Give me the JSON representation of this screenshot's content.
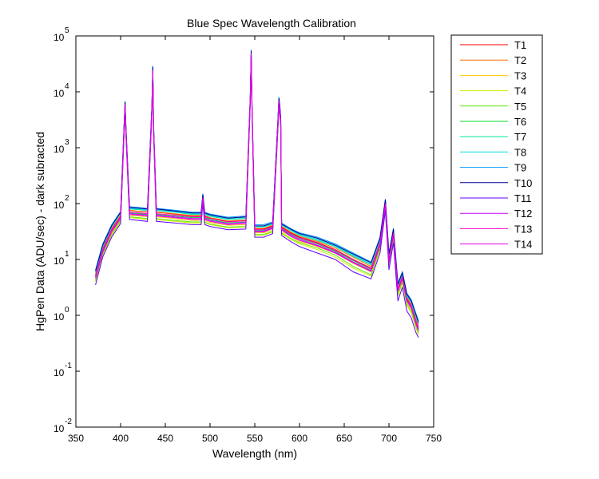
{
  "chart_data": {
    "type": "line",
    "title": "Blue Spec Wavelength Calibration",
    "xlabel": "Wavelength (nm)",
    "ylabel": "HgPen Data (ADU/sec) - dark subracted",
    "xlim": [
      350,
      750
    ],
    "ylim": [
      0.01,
      100000
    ],
    "yscale": "log",
    "grid": false,
    "legend_position": "outside-right",
    "x_ticks": [
      "350",
      "400",
      "450",
      "500",
      "550",
      "600",
      "650",
      "700",
      "750"
    ],
    "y_ticks": [
      {
        "base": "10",
        "exp": "-2"
      },
      {
        "base": "10",
        "exp": "-1"
      },
      {
        "base": "10",
        "exp": "0"
      },
      {
        "base": "10",
        "exp": "1"
      },
      {
        "base": "10",
        "exp": "2"
      },
      {
        "base": "10",
        "exp": "3"
      },
      {
        "base": "10",
        "exp": "4"
      },
      {
        "base": "10",
        "exp": "5"
      }
    ],
    "x": [
      372,
      380,
      390,
      400,
      404,
      405,
      406,
      410,
      420,
      430,
      435,
      436,
      437,
      440,
      460,
      480,
      490,
      492,
      494,
      500,
      520,
      540,
      545,
      546,
      547,
      550,
      560,
      570,
      576,
      577,
      578,
      579,
      580,
      590,
      600,
      620,
      640,
      660,
      680,
      690,
      696,
      700,
      705,
      710,
      715,
      720,
      725,
      730,
      733
    ],
    "series": [
      {
        "name": "T1",
        "color": "#ff0000",
        "values": [
          5,
          15,
          35,
          60,
          2500,
          6000,
          2000,
          75,
          72,
          70,
          5000,
          25000,
          2000,
          70,
          65,
          60,
          60,
          130,
          60,
          55,
          48,
          50,
          8000,
          50000,
          5000,
          35,
          35,
          40,
          3000,
          7000,
          5000,
          3000,
          38,
          30,
          25,
          20,
          15,
          10,
          7,
          20,
          100,
          10,
          30,
          3,
          5,
          2,
          1.5,
          0.8,
          0.6
        ]
      },
      {
        "name": "T2",
        "color": "#ff6a00",
        "values": [
          5.5,
          16,
          36,
          62,
          2600,
          6200,
          2100,
          76,
          73,
          71,
          5200,
          26000,
          2100,
          71,
          66,
          61,
          61,
          132,
          61,
          56,
          49,
          51,
          8200,
          51000,
          5100,
          36,
          36,
          41,
          3100,
          7200,
          5100,
          3100,
          39,
          31,
          26,
          21,
          16,
          11,
          7.5,
          21,
          105,
          11,
          31,
          3.2,
          5.2,
          2.1,
          1.6,
          0.9,
          0.65
        ]
      },
      {
        "name": "T3",
        "color": "#ffc800",
        "values": [
          4.5,
          13,
          30,
          52,
          2200,
          5500,
          1800,
          62,
          60,
          58,
          4500,
          22000,
          1800,
          58,
          54,
          50,
          50,
          115,
          50,
          46,
          41,
          42,
          7000,
          45000,
          4400,
          30,
          30,
          34,
          2600,
          6200,
          4300,
          2600,
          32,
          26,
          21,
          17,
          13,
          8.5,
          6,
          17,
          90,
          8.5,
          26,
          2.6,
          4.3,
          1.7,
          1.3,
          0.7,
          0.5
        ]
      },
      {
        "name": "T4",
        "color": "#c8f000",
        "values": [
          4,
          12,
          27,
          47,
          2000,
          5000,
          1700,
          56,
          54,
          52,
          4200,
          20000,
          1700,
          52,
          48,
          45,
          45,
          105,
          45,
          42,
          37,
          38,
          6500,
          42000,
          4100,
          27,
          27,
          31,
          2400,
          5800,
          4000,
          2400,
          29,
          23,
          19,
          15,
          11,
          7,
          5,
          15,
          80,
          7.5,
          23,
          2.2,
          3.8,
          1.5,
          1.1,
          0.6,
          0.45
        ]
      },
      {
        "name": "T5",
        "color": "#64e600",
        "values": [
          4.2,
          12.5,
          28,
          49,
          2100,
          5200,
          1750,
          58,
          56,
          54,
          4300,
          21000,
          1750,
          54,
          50,
          47,
          47,
          108,
          47,
          43,
          38,
          39,
          6700,
          43000,
          4200,
          28,
          28,
          32,
          2500,
          6000,
          4100,
          2500,
          30,
          24,
          20,
          16,
          12,
          7.5,
          5.3,
          16,
          85,
          8,
          24,
          2.3,
          4,
          1.6,
          1.2,
          0.65,
          0.48
        ]
      },
      {
        "name": "T6",
        "color": "#00dc32",
        "values": [
          5,
          14.5,
          33,
          57,
          2400,
          5800,
          1950,
          68,
          66,
          64,
          4900,
          24000,
          1950,
          64,
          60,
          56,
          56,
          125,
          56,
          52,
          45,
          47,
          7800,
          48000,
          4800,
          33,
          33,
          38,
          2900,
          6800,
          4800,
          2900,
          36,
          28,
          24,
          19,
          14,
          9.5,
          6.6,
          19,
          98,
          9.5,
          29,
          2.9,
          4.8,
          1.9,
          1.45,
          0.78,
          0.58
        ]
      },
      {
        "name": "T7",
        "color": "#00e6a0",
        "values": [
          5.8,
          17,
          38,
          66,
          2700,
          6400,
          2200,
          80,
          78,
          75,
          5400,
          27000,
          2200,
          75,
          70,
          64,
          64,
          138,
          64,
          59,
          52,
          54,
          8500,
          53000,
          5300,
          38,
          38,
          43,
          3200,
          7400,
          5300,
          3200,
          41,
          33,
          27,
          22,
          17,
          11.5,
          8,
          22,
          110,
          11.5,
          33,
          3.4,
          5.5,
          2.2,
          1.7,
          0.95,
          0.7
        ]
      },
      {
        "name": "T8",
        "color": "#00dcdc",
        "values": [
          6,
          17.5,
          39,
          68,
          2750,
          6500,
          2250,
          82,
          80,
          77,
          5500,
          27500,
          2250,
          77,
          72,
          66,
          66,
          140,
          66,
          61,
          54,
          56,
          8700,
          54000,
          5400,
          39,
          39,
          44,
          3300,
          7600,
          5400,
          3300,
          42,
          34,
          28,
          23,
          17.5,
          12,
          8.3,
          23,
          115,
          12,
          34,
          3.5,
          5.7,
          2.3,
          1.75,
          1.0,
          0.72
        ]
      },
      {
        "name": "T9",
        "color": "#0096ff",
        "values": [
          6.5,
          19,
          42,
          72,
          2900,
          6800,
          2400,
          88,
          85,
          82,
          5800,
          29000,
          2400,
          82,
          76,
          70,
          70,
          150,
          70,
          65,
          57,
          60,
          9000,
          56000,
          5600,
          42,
          42,
          47,
          3500,
          8000,
          5600,
          3500,
          45,
          36,
          30,
          25,
          19,
          13,
          9,
          25,
          120,
          13,
          36,
          3.8,
          6,
          2.5,
          1.9,
          1.1,
          0.8
        ]
      },
      {
        "name": "T10",
        "color": "#000096",
        "values": [
          6.2,
          18,
          40,
          70,
          2800,
          6600,
          2300,
          85,
          83,
          80,
          5600,
          28000,
          2300,
          80,
          74,
          68,
          68,
          145,
          68,
          63,
          55,
          58,
          8800,
          55000,
          5500,
          40,
          40,
          45,
          3400,
          7800,
          5500,
          3400,
          43,
          35,
          29,
          24,
          18,
          12.5,
          8.7,
          24,
          118,
          12.5,
          35,
          3.6,
          5.8,
          2.4,
          1.8,
          1.05,
          0.75
        ]
      },
      {
        "name": "T11",
        "color": "#6400ff",
        "values": [
          3.5,
          11,
          25,
          44,
          1900,
          4800,
          1600,
          52,
          50,
          48,
          4000,
          19000,
          1600,
          48,
          45,
          42,
          42,
          100,
          42,
          39,
          34,
          35,
          6200,
          40000,
          3900,
          25,
          25,
          29,
          2300,
          5500,
          3800,
          2300,
          27,
          21,
          17,
          13,
          10,
          6,
          4.5,
          13,
          75,
          6.5,
          20,
          1.8,
          3.2,
          1.2,
          0.9,
          0.5,
          0.4
        ]
      },
      {
        "name": "T12",
        "color": "#c800ff",
        "values": [
          4.8,
          14,
          32,
          55,
          2350,
          5700,
          1900,
          66,
          64,
          62,
          4800,
          23500,
          1900,
          62,
          58,
          54,
          54,
          122,
          54,
          50,
          44,
          46,
          7600,
          47000,
          4700,
          32,
          32,
          37,
          2800,
          6600,
          4700,
          2800,
          35,
          27,
          23,
          18,
          13.5,
          9,
          6.3,
          18,
          95,
          9,
          28,
          2.8,
          4.6,
          1.85,
          1.4,
          0.75,
          0.55
        ]
      },
      {
        "name": "T13",
        "color": "#ff00c8",
        "values": [
          5.2,
          15,
          34,
          59,
          2450,
          5900,
          2000,
          70,
          68,
          66,
          4950,
          24500,
          2000,
          66,
          62,
          58,
          58,
          128,
          58,
          54,
          47,
          49,
          7900,
          49000,
          4900,
          34,
          34,
          39,
          2950,
          6900,
          4900,
          2950,
          37,
          29,
          24.5,
          19.5,
          14.5,
          9.8,
          6.8,
          19.5,
          100,
          9.8,
          29.5,
          3,
          4.9,
          1.95,
          1.5,
          0.8,
          0.6
        ]
      },
      {
        "name": "T14",
        "color": "#e600e6",
        "values": [
          4.6,
          13.5,
          31,
          54,
          2300,
          5600,
          1880,
          64,
          62,
          60,
          4700,
          23000,
          1880,
          60,
          56,
          52,
          52,
          120,
          52,
          48,
          42,
          44,
          7400,
          46000,
          4600,
          31,
          31,
          36,
          2750,
          6500,
          4600,
          2750,
          34,
          26,
          22,
          17.5,
          13,
          8.7,
          6.1,
          17.5,
          92,
          8.7,
          27,
          2.7,
          4.5,
          1.8,
          1.35,
          0.72,
          0.53
        ]
      }
    ]
  }
}
